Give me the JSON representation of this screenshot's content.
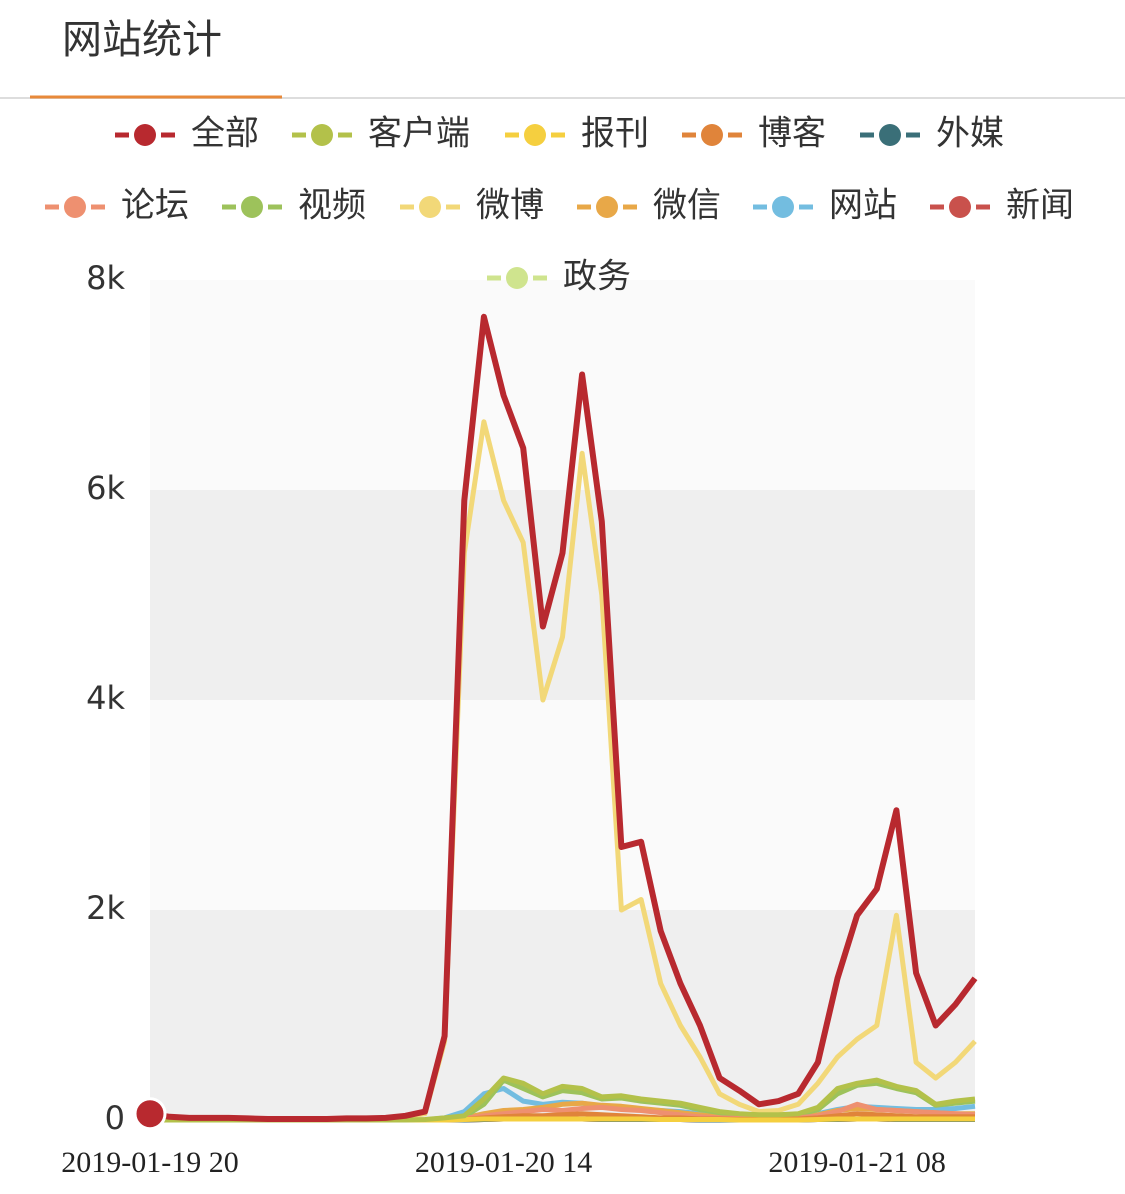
{
  "header": {
    "title": "网站统计"
  },
  "chart_data": {
    "type": "line",
    "categories": [
      "2019-01-19 20",
      null,
      null,
      null,
      null,
      null,
      null,
      null,
      null,
      null,
      null,
      null,
      null,
      null,
      null,
      null,
      null,
      null,
      "2019-01-20 14",
      null,
      null,
      null,
      null,
      null,
      null,
      null,
      null,
      null,
      null,
      null,
      null,
      null,
      null,
      null,
      null,
      null,
      "2019-01-21 08",
      null,
      null,
      null,
      null,
      null,
      null
    ],
    "ylim": [
      0,
      8000
    ],
    "yticks": [
      0,
      {
        "value": 2000,
        "label": "2k"
      },
      {
        "value": 4000,
        "label": "4k"
      },
      {
        "value": 6000,
        "label": "6k"
      },
      {
        "value": 8000,
        "label": "8k"
      }
    ],
    "grid": "bands",
    "series": [
      {
        "name": "全部",
        "color": "#b8292f",
        "values": [
          60,
          30,
          20,
          20,
          20,
          15,
          10,
          10,
          10,
          10,
          15,
          15,
          20,
          40,
          80,
          800,
          5900,
          7650,
          6900,
          6400,
          4700,
          5400,
          7100,
          5700,
          2600,
          2650,
          1800,
          1300,
          900,
          400,
          280,
          150,
          180,
          250,
          550,
          1350,
          1950,
          2200,
          2950,
          1400,
          900,
          1100,
          1350
        ]
      },
      {
        "name": "客户端",
        "color": "#b3c14a",
        "values": [
          0,
          0,
          0,
          0,
          0,
          0,
          0,
          0,
          0,
          0,
          0,
          0,
          0,
          0,
          5,
          20,
          40,
          200,
          400,
          350,
          250,
          320,
          300,
          220,
          230,
          200,
          180,
          160,
          120,
          80,
          60,
          50,
          50,
          60,
          120,
          300,
          350,
          380,
          320,
          280,
          150,
          180,
          200
        ]
      },
      {
        "name": "报刊",
        "color": "#f5cf3f",
        "values": [
          0,
          0,
          0,
          0,
          0,
          0,
          0,
          0,
          0,
          0,
          0,
          0,
          0,
          0,
          0,
          0,
          5,
          10,
          10,
          10,
          10,
          10,
          10,
          10,
          10,
          10,
          5,
          5,
          5,
          5,
          0,
          0,
          0,
          0,
          5,
          10,
          10,
          10,
          10,
          10,
          10,
          10,
          10
        ]
      },
      {
        "name": "博客",
        "color": "#e0843a",
        "values": [
          0,
          0,
          0,
          0,
          0,
          0,
          0,
          0,
          0,
          0,
          0,
          0,
          0,
          0,
          0,
          0,
          5,
          20,
          30,
          40,
          40,
          50,
          60,
          50,
          40,
          30,
          20,
          20,
          10,
          10,
          5,
          5,
          5,
          10,
          20,
          40,
          60,
          50,
          40,
          30,
          30,
          30,
          30
        ]
      },
      {
        "name": "外媒",
        "color": "#3a6f78",
        "values": [
          0,
          0,
          0,
          0,
          0,
          0,
          0,
          0,
          0,
          0,
          0,
          0,
          0,
          0,
          0,
          0,
          0,
          5,
          10,
          10,
          10,
          10,
          10,
          5,
          5,
          5,
          5,
          5,
          0,
          0,
          0,
          0,
          0,
          0,
          5,
          5,
          10,
          10,
          5,
          5,
          5,
          5,
          5
        ]
      },
      {
        "name": "论坛",
        "color": "#ee9070",
        "values": [
          0,
          0,
          0,
          0,
          0,
          0,
          0,
          0,
          0,
          0,
          0,
          0,
          0,
          0,
          0,
          5,
          15,
          40,
          60,
          80,
          100,
          90,
          110,
          120,
          100,
          90,
          70,
          50,
          30,
          20,
          15,
          15,
          15,
          20,
          40,
          80,
          150,
          100,
          90,
          80,
          70,
          60,
          50
        ]
      },
      {
        "name": "视频",
        "color": "#9dc25b",
        "values": [
          0,
          0,
          0,
          0,
          0,
          0,
          0,
          0,
          0,
          0,
          0,
          0,
          0,
          0,
          0,
          10,
          30,
          150,
          380,
          300,
          220,
          280,
          260,
          200,
          210,
          180,
          160,
          140,
          100,
          70,
          50,
          40,
          40,
          50,
          100,
          250,
          330,
          350,
          300,
          260,
          140,
          160,
          180
        ]
      },
      {
        "name": "微博",
        "color": "#f2d878",
        "values": [
          50,
          25,
          15,
          15,
          15,
          10,
          8,
          8,
          8,
          8,
          10,
          10,
          15,
          30,
          60,
          750,
          5400,
          6650,
          5900,
          5500,
          4000,
          4600,
          6350,
          5000,
          2000,
          2100,
          1300,
          900,
          600,
          250,
          150,
          80,
          90,
          150,
          350,
          600,
          770,
          900,
          1950,
          550,
          400,
          550,
          750
        ]
      },
      {
        "name": "微信",
        "color": "#e8a848",
        "values": [
          0,
          0,
          0,
          0,
          0,
          0,
          0,
          0,
          0,
          0,
          0,
          0,
          0,
          0,
          0,
          5,
          20,
          60,
          90,
          100,
          120,
          150,
          160,
          140,
          130,
          110,
          90,
          70,
          50,
          30,
          20,
          20,
          20,
          30,
          50,
          90,
          110,
          100,
          90,
          80,
          70,
          60,
          60
        ]
      },
      {
        "name": "网站",
        "color": "#73bde0",
        "values": [
          0,
          0,
          0,
          0,
          0,
          0,
          0,
          0,
          0,
          0,
          0,
          0,
          0,
          0,
          0,
          20,
          80,
          250,
          300,
          180,
          150,
          170,
          160,
          130,
          110,
          100,
          90,
          80,
          60,
          40,
          30,
          30,
          30,
          40,
          60,
          100,
          130,
          120,
          110,
          100,
          100,
          110,
          130
        ]
      },
      {
        "name": "新闻",
        "color": "#c9514c",
        "values": [
          0,
          0,
          0,
          0,
          0,
          0,
          0,
          0,
          0,
          0,
          0,
          0,
          0,
          0,
          0,
          0,
          0,
          5,
          10,
          10,
          10,
          10,
          10,
          5,
          5,
          5,
          5,
          5,
          0,
          0,
          0,
          0,
          0,
          0,
          5,
          5,
          10,
          10,
          5,
          5,
          5,
          5,
          5
        ]
      },
      {
        "name": "政务",
        "color": "#cfe48e",
        "values": [
          0,
          0,
          0,
          0,
          0,
          0,
          0,
          0,
          0,
          0,
          0,
          0,
          0,
          0,
          0,
          0,
          0,
          5,
          10,
          10,
          10,
          10,
          10,
          5,
          5,
          5,
          5,
          5,
          0,
          0,
          0,
          0,
          0,
          0,
          5,
          5,
          10,
          10,
          5,
          5,
          5,
          5,
          5
        ]
      }
    ]
  }
}
